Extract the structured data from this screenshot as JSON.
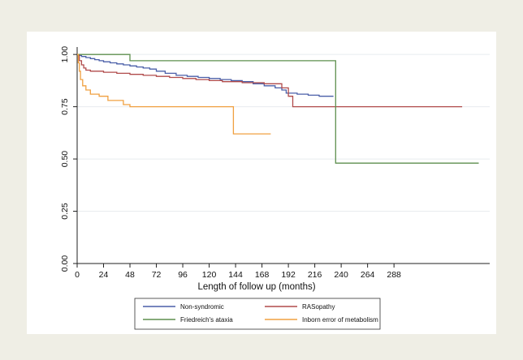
{
  "chart_data": {
    "type": "line",
    "step": true,
    "title": "",
    "xlabel": "Length of follow up (months)",
    "ylabel": "",
    "xlim": [
      0,
      375
    ],
    "ylim": [
      0,
      1.02
    ],
    "xticks": [
      0,
      24,
      48,
      72,
      96,
      120,
      144,
      168,
      192,
      216,
      240,
      264,
      288
    ],
    "yticks": [
      0.0,
      0.25,
      0.5,
      0.75,
      1.0
    ],
    "ytick_labels": [
      "0.00",
      "0.25",
      "0.50",
      "0.75",
      "1.00"
    ],
    "grid": "horizontal",
    "legend_position": "bottom",
    "series": [
      {
        "name": "Non-syndromic",
        "color": "#4a5fa8",
        "x": [
          0,
          2,
          4,
          8,
          12,
          16,
          20,
          24,
          30,
          36,
          42,
          48,
          54,
          60,
          66,
          72,
          80,
          90,
          100,
          110,
          120,
          130,
          140,
          150,
          160,
          170,
          180,
          186,
          190,
          200,
          210,
          220,
          233
        ],
        "y": [
          1.0,
          0.995,
          0.99,
          0.985,
          0.98,
          0.975,
          0.97,
          0.965,
          0.96,
          0.955,
          0.95,
          0.945,
          0.94,
          0.935,
          0.93,
          0.92,
          0.91,
          0.9,
          0.895,
          0.89,
          0.885,
          0.88,
          0.875,
          0.87,
          0.86,
          0.85,
          0.84,
          0.83,
          0.815,
          0.81,
          0.805,
          0.8,
          0.8
        ]
      },
      {
        "name": "RASopathy",
        "color": "#b04a4a",
        "x": [
          0,
          2,
          4,
          6,
          8,
          12,
          24,
          36,
          48,
          60,
          72,
          84,
          96,
          108,
          120,
          132,
          150,
          170,
          186,
          192,
          196,
          210,
          240,
          280,
          320,
          350
        ],
        "y": [
          1.0,
          0.97,
          0.95,
          0.935,
          0.925,
          0.92,
          0.915,
          0.91,
          0.905,
          0.9,
          0.895,
          0.89,
          0.885,
          0.88,
          0.875,
          0.87,
          0.865,
          0.86,
          0.84,
          0.8,
          0.75,
          0.75,
          0.75,
          0.75,
          0.75,
          0.75
        ]
      },
      {
        "name": "Friedreich's ataxia",
        "color": "#5e8f4e",
        "x": [
          0,
          48,
          100,
          200,
          235,
          300,
          365
        ],
        "y": [
          1.0,
          0.97,
          0.97,
          0.97,
          0.48,
          0.48,
          0.48
        ]
      },
      {
        "name": "Inborn error of metabolism",
        "color": "#f0a040",
        "x": [
          0,
          1,
          2,
          3,
          5,
          8,
          12,
          20,
          28,
          42,
          48,
          80,
          120,
          142,
          160,
          176
        ],
        "y": [
          1.0,
          0.96,
          0.92,
          0.88,
          0.85,
          0.83,
          0.81,
          0.8,
          0.78,
          0.76,
          0.75,
          0.75,
          0.75,
          0.62,
          0.62,
          0.62
        ]
      }
    ]
  }
}
